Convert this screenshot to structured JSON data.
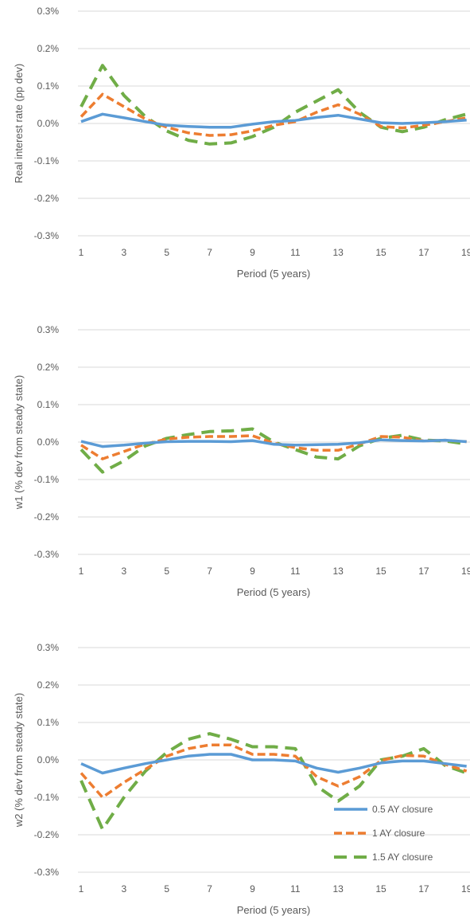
{
  "chart_data": [
    {
      "type": "line",
      "xlabel": "Period (5 years)",
      "ylabel": "Real interest rate (pp dev)",
      "x": [
        1,
        2,
        3,
        4,
        5,
        6,
        7,
        8,
        9,
        10,
        11,
        12,
        13,
        14,
        15,
        16,
        17,
        18,
        19
      ],
      "xticks": [
        "1",
        "3",
        "5",
        "7",
        "9",
        "11",
        "13",
        "15",
        "17",
        "19"
      ],
      "yticks": [
        "0.3%",
        "0.2%",
        "0.1%",
        "0.0%",
        "-0.1%",
        "-0.2%",
        "-0.3%"
      ],
      "ylim": [
        -0.3,
        0.3
      ],
      "grid": true,
      "series": [
        {
          "name": "0.5 AY closure",
          "values": [
            0.005,
            0.025,
            0.015,
            0.005,
            -0.005,
            -0.008,
            -0.01,
            -0.01,
            -0.002,
            0.005,
            0.008,
            0.016,
            0.022,
            0.012,
            0.002,
            0.0,
            0.002,
            0.005,
            0.009
          ]
        },
        {
          "name": "1 AY closure",
          "values": [
            0.018,
            0.078,
            0.045,
            0.012,
            -0.01,
            -0.025,
            -0.032,
            -0.03,
            -0.02,
            -0.005,
            0.005,
            0.03,
            0.05,
            0.025,
            -0.008,
            -0.012,
            -0.005,
            0.005,
            0.015
          ]
        },
        {
          "name": "1.5 AY closure",
          "values": [
            0.045,
            0.155,
            0.075,
            0.018,
            -0.02,
            -0.045,
            -0.055,
            -0.052,
            -0.035,
            -0.01,
            0.03,
            0.06,
            0.09,
            0.03,
            -0.01,
            -0.022,
            -0.01,
            0.01,
            0.025
          ]
        }
      ]
    },
    {
      "type": "line",
      "xlabel": "Period (5 years)",
      "ylabel": "w1 (% dev from steady state)",
      "x": [
        1,
        2,
        3,
        4,
        5,
        6,
        7,
        8,
        9,
        10,
        11,
        12,
        13,
        14,
        15,
        16,
        17,
        18,
        19
      ],
      "xticks": [
        "1",
        "3",
        "5",
        "7",
        "9",
        "11",
        "13",
        "15",
        "17",
        "19"
      ],
      "yticks": [
        "0.3%",
        "0.2%",
        "0.1%",
        "0.0%",
        "-0.1%",
        "-0.2%",
        "-0.3%"
      ],
      "ylim": [
        -0.3,
        0.3
      ],
      "grid": true,
      "series": [
        {
          "name": "0.5 AY closure",
          "values": [
            0.002,
            -0.012,
            -0.008,
            -0.003,
            0.001,
            0.002,
            0.002,
            0.001,
            0.004,
            -0.006,
            -0.008,
            -0.007,
            -0.006,
            -0.002,
            0.006,
            0.004,
            0.003,
            0.005,
            0.001
          ]
        },
        {
          "name": "1 AY closure",
          "values": [
            -0.008,
            -0.045,
            -0.025,
            -0.005,
            0.008,
            0.013,
            0.015,
            0.015,
            0.017,
            -0.003,
            -0.015,
            -0.022,
            -0.022,
            -0.005,
            0.015,
            0.013,
            0.003,
            0.005,
            0.001
          ]
        },
        {
          "name": "1.5 AY closure",
          "values": [
            -0.02,
            -0.08,
            -0.05,
            -0.01,
            0.01,
            0.02,
            0.028,
            0.03,
            0.035,
            0.0,
            -0.02,
            -0.04,
            -0.045,
            -0.01,
            0.01,
            0.018,
            0.005,
            0.003,
            -0.005
          ]
        }
      ]
    },
    {
      "type": "line",
      "xlabel": "Period (5 years)",
      "ylabel": "w2 (% dev from steady state)",
      "x": [
        1,
        2,
        3,
        4,
        5,
        6,
        7,
        8,
        9,
        10,
        11,
        12,
        13,
        14,
        15,
        16,
        17,
        18,
        19
      ],
      "xticks": [
        "1",
        "3",
        "5",
        "7",
        "9",
        "11",
        "13",
        "15",
        "17",
        "19"
      ],
      "yticks": [
        "0.3%",
        "0.2%",
        "0.1%",
        "0.0%",
        "-0.1%",
        "-0.2%",
        "-0.3%"
      ],
      "ylim": [
        -0.3,
        0.3
      ],
      "grid": true,
      "legend": "bottom-right",
      "series": [
        {
          "name": "0.5 AY closure",
          "values": [
            -0.01,
            -0.035,
            -0.022,
            -0.01,
            0.0,
            0.01,
            0.015,
            0.015,
            0.0,
            0.0,
            -0.003,
            -0.022,
            -0.033,
            -0.022,
            -0.008,
            -0.003,
            -0.003,
            -0.01,
            -0.017
          ]
        },
        {
          "name": "1 AY closure",
          "values": [
            -0.035,
            -0.1,
            -0.06,
            -0.025,
            0.01,
            0.03,
            0.04,
            0.04,
            0.015,
            0.015,
            0.01,
            -0.045,
            -0.07,
            -0.045,
            -0.002,
            0.012,
            0.01,
            -0.012,
            -0.03
          ]
        },
        {
          "name": "1.5 AY closure",
          "values": [
            -0.055,
            -0.185,
            -0.1,
            -0.03,
            0.02,
            0.055,
            0.07,
            0.055,
            0.035,
            0.035,
            0.03,
            -0.07,
            -0.11,
            -0.07,
            0.0,
            0.01,
            0.03,
            -0.015,
            -0.035
          ]
        }
      ]
    }
  ],
  "colors": {
    "series": [
      "#5b9bd5",
      "#ed7d31",
      "#70ad47"
    ],
    "grid": "#d9d9d9",
    "text": "#595959"
  }
}
